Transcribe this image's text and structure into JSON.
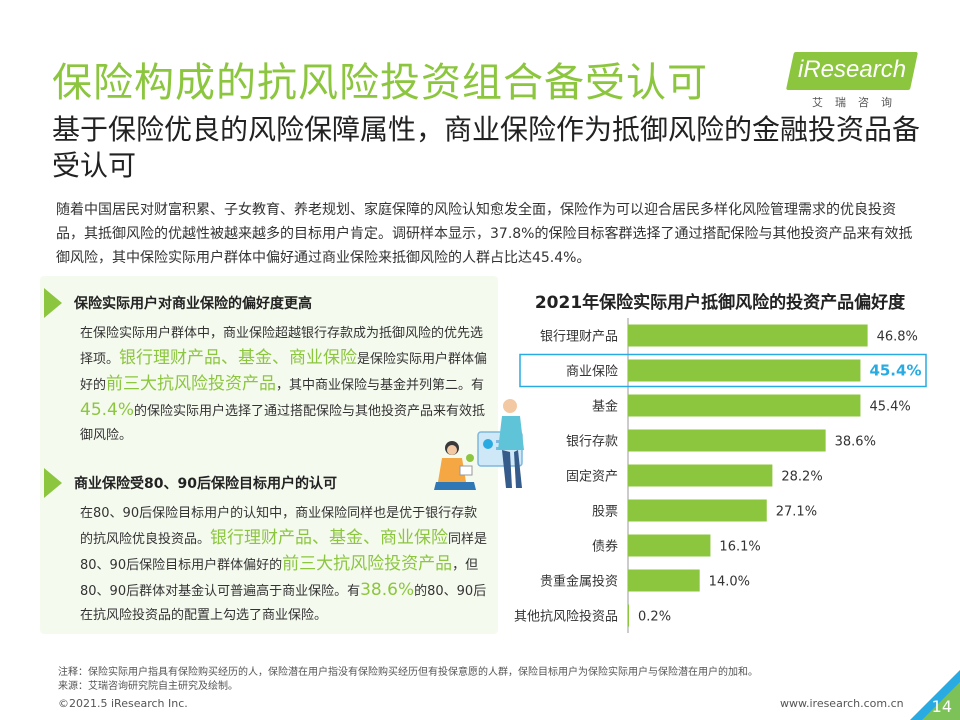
{
  "page": {
    "title": "保险构成的抗风险投资组合备受认可",
    "subtitle": "基于保险优良的风险保障属性，商业保险作为抵御风险的金融投资品备受认可",
    "intro": "随着中国居民对财富积累、子女教育、养老规划、家庭保障的风险认知愈发全面，保险作为可以迎合居民多样化风险管理需求的优良投资品，其抵御风险的优越性被越来越多的目标用户肯定。调研样本显示，37.8%的保险目标客群选择了通过搭配保险与其他投资产品来有效抵御风险，其中保险实际用户群体中偏好通过商业保险来抵御风险的人群占比达45.4%。"
  },
  "logo": {
    "text": "iResearch",
    "cn": "艾瑞咨询"
  },
  "section1": {
    "title": "保险实际用户对商业保险的偏好度更高",
    "body_a": "在保险实际用户群体中，商业保险超越银行存款成为抵御风险的优先选择项。",
    "hl_a": "银行理财产品、基金、商业保险",
    "body_b": "是保险实际用户群体偏好的",
    "hl_b": "前三大抗风险投资产品",
    "body_c": "，其中商业保险与基金并列第二。有",
    "hl_c": "45.4%",
    "body_d": "的保险实际用户选择了通过搭配保险与其他投资产品来有效抵御风险。"
  },
  "section2": {
    "title": "商业保险受80、90后保险目标用户的认可",
    "body_a": "在80、90后保险目标用户的认知中，商业保险同样也是优于银行存款的抗风险优良投资品。",
    "hl_a": "银行理财产品、基金、商业保险",
    "body_b": "同样是80、90后保险目标用户群体偏好的",
    "hl_b": "前三大抗风险投资产品",
    "body_c": "，但80、90后群体对基金认可普遍高于商业保险。有",
    "hl_c": "38.6%",
    "body_d": "的80、90后在抗风险投资品的配置上勾选了商业保险。"
  },
  "chart_data": {
    "type": "bar",
    "orientation": "horizontal",
    "title": "2021年保险实际用户抵御风险的投资产品偏好度",
    "categories": [
      "银行理财产品",
      "商业保险",
      "基金",
      "银行存款",
      "固定资产",
      "股票",
      "债券",
      "贵重金属投资",
      "其他抗风险投资品"
    ],
    "values": [
      46.8,
      45.4,
      45.4,
      38.6,
      28.2,
      27.1,
      16.1,
      14.0,
      0.2
    ],
    "labels": [
      "46.8%",
      "45.4%",
      "45.4%",
      "38.6%",
      "28.2%",
      "27.1%",
      "16.1%",
      "14.0%",
      "0.2%"
    ],
    "highlight_index": 1,
    "xlim": [
      0,
      50
    ],
    "bar_color": "#8cc63f",
    "highlight_color": "#29abe2"
  },
  "footer": {
    "note": "注释：保险实际用户指具有保险购买经历的人，保险潜在用户指没有保险购买经历但有投保意愿的人群，保险目标用户为保险实际用户与保险潜在用户的加和。",
    "source": "来源：艾瑞咨询研究院自主研究及绘制。",
    "copyright": "©2021.5 iResearch Inc.",
    "site": "www.iresearch.com.cn",
    "page_number": "14"
  }
}
